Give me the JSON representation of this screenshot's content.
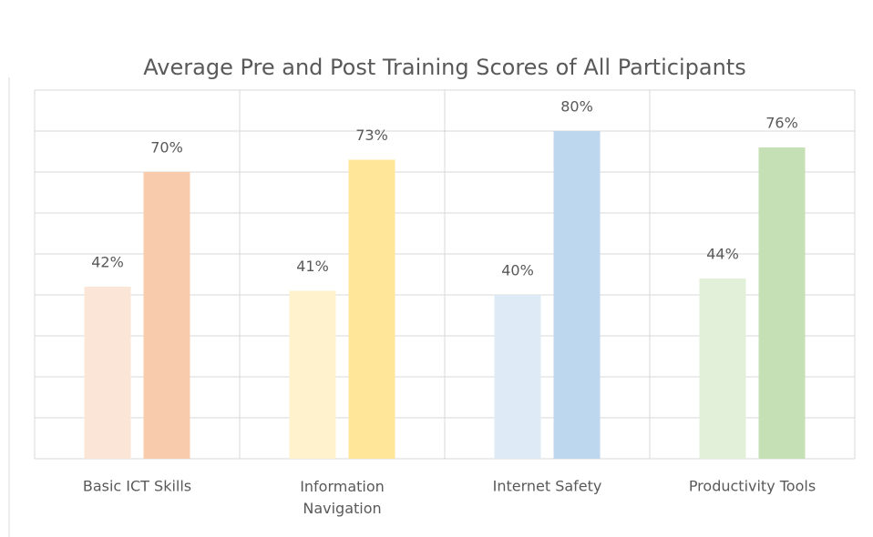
{
  "chart_data": {
    "type": "bar",
    "title": "Average Pre and Post Training Scores of All Participants",
    "categories": [
      "Basic ICT Skills",
      "Information Navigation",
      "Internet Safety",
      "Productivity Tools"
    ],
    "series": [
      {
        "colors": [
          "#fbe5d6",
          "#fff2cc",
          "#deebf7",
          "#e2f0d9"
        ],
        "values": [
          42,
          41,
          40,
          44
        ],
        "value_labels": [
          "42%",
          "41%",
          "40%",
          "44%"
        ]
      },
      {
        "colors": [
          "#f8cbad",
          "#ffe699",
          "#bdd7ee",
          "#c5e0b4"
        ],
        "values": [
          70,
          73,
          80,
          76
        ],
        "value_labels": [
          "70%",
          "73%",
          "80%",
          "76%"
        ]
      }
    ],
    "ylim": [
      0,
      90
    ],
    "yticks": [
      0,
      10,
      20,
      30,
      40,
      50,
      60,
      70,
      80,
      90
    ],
    "grid": true
  }
}
